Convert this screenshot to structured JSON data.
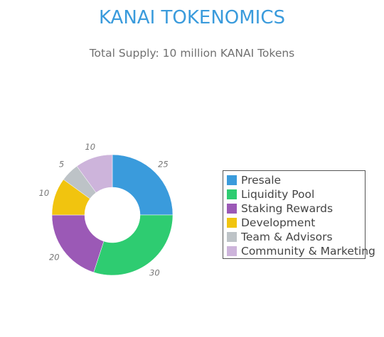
{
  "header": {
    "title": "KANAI TOKENOMICS",
    "subtitle": "Total Supply: 10 million KANAI Tokens"
  },
  "chart_data": {
    "type": "pie",
    "donut": true,
    "title": "KANAI TOKENOMICS",
    "subtitle": "Total Supply: 10 million KANAI Tokens",
    "categories": [
      "Presale",
      "Liquidity Pool",
      "Staking Rewards",
      "Development",
      "Team & Advisors",
      "Community & Marketing"
    ],
    "values": [
      25,
      30,
      20,
      10,
      5,
      10
    ],
    "data_labels": [
      "25",
      "30",
      "20",
      "10",
      "5",
      "10"
    ],
    "colors": [
      "#3a9bdc",
      "#2ecc71",
      "#9b59b6",
      "#f1c40f",
      "#bdc3c7",
      "#cdb4db"
    ],
    "legend_position": "right"
  }
}
